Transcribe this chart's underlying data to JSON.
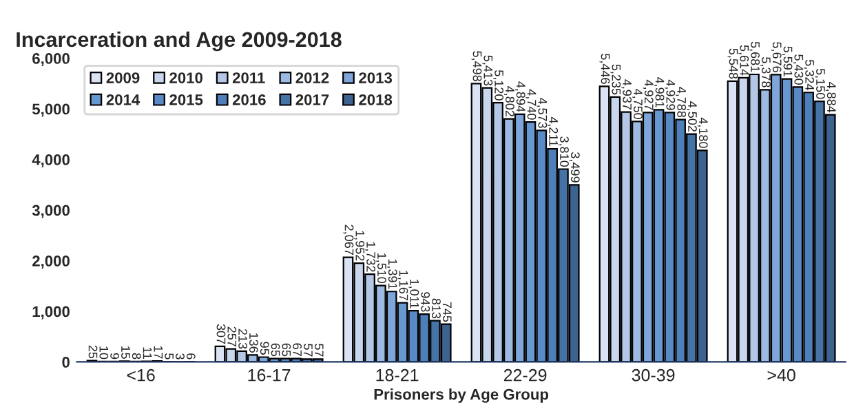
{
  "chart_data": {
    "type": "bar",
    "title": "Incarceration and Age 2009-2018",
    "xlabel": "Prisoners by Age Group",
    "categories": [
      "<16",
      "16-17",
      "18-21",
      "22-29",
      "30-39",
      ">40"
    ],
    "series": [
      {
        "name": "2009",
        "color": "#dae3f3",
        "values": [
          25,
          307,
          2067,
          5498,
          5446,
          5548
        ],
        "value_labels": [
          "25",
          "307",
          "2,067",
          "5,498",
          "5,446",
          "5,548"
        ]
      },
      {
        "name": "2010",
        "color": "#c9d7ee",
        "values": [
          10,
          257,
          1952,
          5413,
          5235,
          5614
        ],
        "value_labels": [
          "10",
          "257",
          "1,952",
          "5,413",
          "5,235",
          "5,614"
        ]
      },
      {
        "name": "2011",
        "color": "#b4c7e7",
        "values": [
          9,
          213,
          1732,
          5120,
          4937,
          5681
        ],
        "value_labels": [
          "9",
          "213",
          "1,732",
          "5,120",
          "4,937",
          "5,681"
        ]
      },
      {
        "name": "2012",
        "color": "#9dbae3",
        "values": [
          15,
          136,
          1510,
          4802,
          4750,
          5378
        ],
        "value_labels": [
          "15",
          "136",
          "1,510",
          "4,802",
          "4,750",
          "5,378"
        ]
      },
      {
        "name": "2013",
        "color": "#7ea6da",
        "values": [
          8,
          95,
          1391,
          4894,
          4927,
          5676
        ],
        "value_labels": [
          "8",
          "95",
          "1,391",
          "4,894",
          "4,927",
          "5,676"
        ]
      },
      {
        "name": "2014",
        "color": "#6898d0",
        "values": [
          11,
          65,
          1167,
          4740,
          4981,
          5591
        ],
        "value_labels": [
          "11",
          "65",
          "1,167",
          "4,740",
          "4,981",
          "5,591"
        ]
      },
      {
        "name": "2015",
        "color": "#5a8ac6",
        "values": [
          17,
          65,
          1011,
          4573,
          4929,
          5430
        ],
        "value_labels": [
          "17",
          "65",
          "1,011",
          "4,573",
          "4,929",
          "5,430"
        ]
      },
      {
        "name": "2016",
        "color": "#4f7fb8",
        "values": [
          5,
          67,
          943,
          4211,
          4788,
          5324
        ],
        "value_labels": [
          "5",
          "67",
          "943",
          "4,211",
          "4,788",
          "5,324"
        ]
      },
      {
        "name": "2017",
        "color": "#4673a6",
        "values": [
          3,
          57,
          813,
          3810,
          4502,
          5150
        ],
        "value_labels": [
          "3",
          "57",
          "813",
          "3,810",
          "4,502",
          "5,150"
        ]
      },
      {
        "name": "2018",
        "color": "#3d6490",
        "values": [
          6,
          57,
          745,
          3499,
          4180,
          4884
        ],
        "value_labels": [
          "6",
          "57",
          "745",
          "3,499",
          "4,180",
          "4,884"
        ]
      }
    ],
    "ylim": [
      0,
      6000
    ],
    "yticks": [
      {
        "value": 0,
        "label": "0"
      },
      {
        "value": 1000,
        "label": "1,000"
      },
      {
        "value": 2000,
        "label": "2,000"
      },
      {
        "value": 3000,
        "label": "3,000"
      },
      {
        "value": 4000,
        "label": "4,000"
      },
      {
        "value": 5000,
        "label": "5,000"
      },
      {
        "value": 6000,
        "label": "6,000"
      }
    ],
    "legend": "top left"
  }
}
